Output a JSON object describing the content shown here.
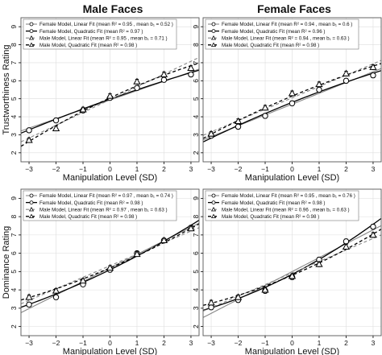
{
  "column_titles": [
    "Male Faces",
    "Female Faces"
  ],
  "row_ylabels": [
    "Trustworthiness Rating",
    "Dominance Rating"
  ],
  "xlabel": "Manipulation Level (SD)",
  "colors": {
    "female_model": "#888888",
    "male_model": "#000000",
    "grid": "#dddddd",
    "panel_border": "#555555"
  },
  "chart_data": [
    {
      "type": "line",
      "title": "Male Faces",
      "ylabel": "Trustworthiness Rating",
      "xlabel": "Manipulation Level (SD)",
      "xlim": [
        -3.3,
        3.3
      ],
      "ylim": [
        1.5,
        9.5
      ],
      "xticks": [
        -3,
        -2,
        -1,
        0,
        1,
        2,
        3
      ],
      "yticks": [
        2,
        3,
        4,
        5,
        6,
        7,
        8,
        9
      ],
      "grid": true,
      "legend_position": "top-left",
      "x": [
        -3,
        -2,
        -1,
        0,
        1,
        2,
        3
      ],
      "legend": [
        "Female Model, Linear Fit (mean R² = 0.95 , mean b₁ = 0.52 )",
        "Female Model, Quadratic Fit (mean R² = 0.97 )",
        "Male Model, Linear Fit (mean R² = 0.95 , mean b₁ = 0.71 )",
        "Male Model, Quadratic Fit (mean R² = 0.98 )"
      ],
      "series": [
        {
          "model": "female",
          "values": [
            3.25,
            3.8,
            4.35,
            5.05,
            5.6,
            6.05,
            6.35
          ],
          "error": [
            0.12,
            0.12,
            0.12,
            0.12,
            0.12,
            0.12,
            0.12
          ]
        },
        {
          "model": "male",
          "values": [
            2.7,
            3.35,
            4.4,
            5.15,
            5.95,
            6.35,
            6.7
          ],
          "error": [
            0.13,
            0.13,
            0.13,
            0.13,
            0.13,
            0.13,
            0.13
          ]
        }
      ],
      "fits": {
        "female_linear": {
          "intercept": 4.93,
          "slope": 0.52
        },
        "female_quadratic": {
          "a": 4.98,
          "b": 0.53,
          "c": -0.013
        },
        "male_linear": {
          "intercept": 4.95,
          "slope": 0.71
        },
        "male_quadratic": {
          "a": 5.05,
          "b": 0.7,
          "c": -0.035
        }
      }
    },
    {
      "type": "line",
      "title": "Female Faces",
      "ylabel": "Trustworthiness Rating",
      "xlabel": "Manipulation Level (SD)",
      "xlim": [
        -3.3,
        3.3
      ],
      "ylim": [
        1.5,
        9.5
      ],
      "xticks": [
        -3,
        -2,
        -1,
        0,
        1,
        2,
        3
      ],
      "yticks": [
        2,
        3,
        4,
        5,
        6,
        7,
        8,
        9
      ],
      "grid": true,
      "legend_position": "top-left",
      "x": [
        -3,
        -2,
        -1,
        0,
        1,
        2,
        3
      ],
      "legend": [
        "Female Model, Linear Fit (mean R² = 0.94 , mean b₁ = 0.6 )",
        "Female Model, Quadratic Fit (mean R² = 0.96 )",
        "Male Model, Linear Fit (mean R² = 0.94 , mean b₁ = 0.63 )",
        "Male Model, Quadratic Fit (mean R² = 0.98 )"
      ],
      "series": [
        {
          "model": "female",
          "values": [
            2.95,
            3.45,
            4.05,
            4.75,
            5.5,
            6.0,
            6.3
          ],
          "error": [
            0.13,
            0.13,
            0.13,
            0.13,
            0.13,
            0.13,
            0.13
          ]
        },
        {
          "model": "male",
          "values": [
            3.05,
            3.75,
            4.5,
            5.3,
            5.8,
            6.4,
            6.75
          ],
          "error": [
            0.13,
            0.13,
            0.13,
            0.13,
            0.13,
            0.13,
            0.13
          ]
        }
      ],
      "fits": {
        "female_linear": {
          "intercept": 4.7,
          "slope": 0.6
        },
        "female_quadratic": {
          "a": 4.8,
          "b": 0.6,
          "c": -0.02
        },
        "male_linear": {
          "intercept": 5.05,
          "slope": 0.63
        },
        "male_quadratic": {
          "a": 5.15,
          "b": 0.63,
          "c": -0.025
        }
      }
    },
    {
      "type": "line",
      "title": "",
      "ylabel": "Dominance Rating",
      "xlabel": "Manipulation Level (SD)",
      "xlim": [
        -3.3,
        3.3
      ],
      "ylim": [
        1.5,
        9.5
      ],
      "xticks": [
        -3,
        -2,
        -1,
        0,
        1,
        2,
        3
      ],
      "yticks": [
        2,
        3,
        4,
        5,
        6,
        7,
        8,
        9
      ],
      "grid": true,
      "legend_position": "top-left",
      "x": [
        -3,
        -2,
        -1,
        0,
        1,
        2,
        3
      ],
      "legend": [
        "Female Model, Linear Fit (mean R² = 0.97 , mean b₁ = 0.74 )",
        "Female Model, Quadratic Fit (mean R² = 0.98 )",
        "Male Model, Linear Fit (mean R² = 0.97 , mean b₁ = 0.63 )",
        "Male Model, Quadratic Fit (mean R² = 0.98 )"
      ],
      "series": [
        {
          "model": "female",
          "values": [
            3.2,
            3.6,
            4.3,
            5.1,
            6.0,
            6.7,
            7.4
          ],
          "error": [
            0.12,
            0.12,
            0.12,
            0.12,
            0.12,
            0.12,
            0.12
          ]
        },
        {
          "model": "male",
          "values": [
            3.6,
            3.95,
            4.5,
            5.2,
            5.95,
            6.7,
            7.35
          ],
          "error": [
            0.12,
            0.12,
            0.12,
            0.12,
            0.12,
            0.12,
            0.12
          ]
        }
      ],
      "fits": {
        "female_linear": {
          "intercept": 5.2,
          "slope": 0.74
        },
        "female_quadratic": {
          "a": 5.1,
          "b": 0.72,
          "c": 0.03
        },
        "male_linear": {
          "intercept": 5.32,
          "slope": 0.63
        },
        "male_quadratic": {
          "a": 5.2,
          "b": 0.63,
          "c": 0.03
        }
      }
    },
    {
      "type": "line",
      "title": "",
      "ylabel": "Dominance Rating",
      "xlabel": "Manipulation Level (SD)",
      "xlim": [
        -3.3,
        3.3
      ],
      "ylim": [
        1.5,
        9.5
      ],
      "xticks": [
        -3,
        -2,
        -1,
        0,
        1,
        2,
        3
      ],
      "yticks": [
        2,
        3,
        4,
        5,
        6,
        7,
        8,
        9
      ],
      "grid": true,
      "legend_position": "top-left",
      "x": [
        -3,
        -2,
        -1,
        0,
        1,
        2,
        3
      ],
      "legend": [
        "Female Model, Linear Fit (mean R² = 0.95 , mean b₁ = 0.76 )",
        "Female Model, Quadratic Fit (mean R² = 0.98 )",
        "Male Model, Linear Fit (mean R² = 0.96 , mean b₁ = 0.63 )",
        "Male Model, Quadratic Fit (mean R² = 0.98 )"
      ],
      "series": [
        {
          "model": "female",
          "values": [
            3.05,
            3.45,
            3.95,
            4.7,
            5.65,
            6.65,
            7.45
          ],
          "error": [
            0.13,
            0.13,
            0.13,
            0.13,
            0.13,
            0.13,
            0.13
          ]
        },
        {
          "model": "male",
          "values": [
            3.3,
            3.6,
            4.0,
            4.75,
            5.4,
            6.35,
            7.0
          ],
          "error": [
            0.13,
            0.13,
            0.13,
            0.13,
            0.13,
            0.13,
            0.13
          ]
        }
      ],
      "fits": {
        "female_linear": {
          "intercept": 5.0,
          "slope": 0.76
        },
        "female_quadratic": {
          "a": 4.85,
          "b": 0.76,
          "c": 0.05
        },
        "male_linear": {
          "intercept": 4.92,
          "slope": 0.63
        },
        "male_quadratic": {
          "a": 4.8,
          "b": 0.63,
          "c": 0.04
        }
      }
    }
  ]
}
